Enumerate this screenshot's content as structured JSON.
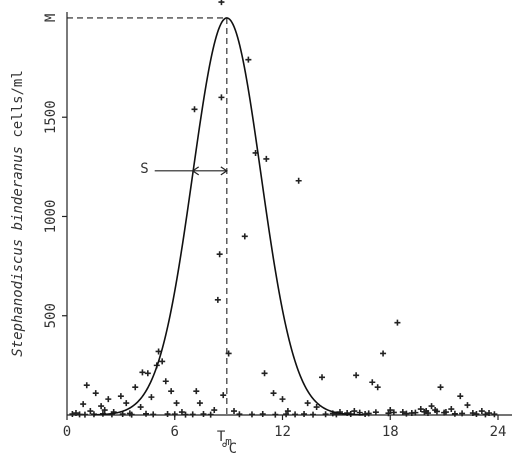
{
  "chart_data": {
    "type": "scatter",
    "xlabel": "°C",
    "ylabel_species": "Stephanodiscus binderanus",
    "ylabel_units": " cells/ml",
    "xlim": [
      0,
      24
    ],
    "ylim": [
      0,
      2030
    ],
    "xticks": [
      0,
      6,
      12,
      18,
      24
    ],
    "yticks": [
      500,
      1000,
      1500
    ],
    "annotations": {
      "max_label": "M",
      "spread_label": "S",
      "tm_label": "T",
      "tm_subscript": "m"
    },
    "fitted_curve": {
      "peak_x": 8.9,
      "peak_y": 2000,
      "sd": 1.9,
      "spread_from_x": 7.0,
      "spread_y": 1230
    },
    "points": [
      [
        0.5,
        10
      ],
      [
        0.9,
        55
      ],
      [
        1.1,
        150
      ],
      [
        1.3,
        20
      ],
      [
        1.6,
        110
      ],
      [
        1.9,
        45
      ],
      [
        2.1,
        25
      ],
      [
        2.3,
        80
      ],
      [
        2.6,
        15
      ],
      [
        3.0,
        95
      ],
      [
        3.3,
        60
      ],
      [
        3.5,
        8
      ],
      [
        3.8,
        140
      ],
      [
        4.1,
        40
      ],
      [
        4.2,
        215
      ],
      [
        4.5,
        210
      ],
      [
        4.7,
        90
      ],
      [
        5.0,
        250
      ],
      [
        5.1,
        320
      ],
      [
        5.3,
        270
      ],
      [
        5.5,
        170
      ],
      [
        5.8,
        120
      ],
      [
        6.1,
        60
      ],
      [
        6.4,
        15
      ],
      [
        7.1,
        1540
      ],
      [
        7.2,
        120
      ],
      [
        7.4,
        60
      ],
      [
        8.4,
        580
      ],
      [
        8.5,
        810
      ],
      [
        8.6,
        1600
      ],
      [
        8.7,
        100
      ],
      [
        8.6,
        2080
      ],
      [
        8.2,
        25
      ],
      [
        9.0,
        310
      ],
      [
        9.3,
        20
      ],
      [
        9.9,
        900
      ],
      [
        10.1,
        1790
      ],
      [
        10.5,
        1320
      ],
      [
        11.0,
        210
      ],
      [
        11.1,
        1290
      ],
      [
        11.5,
        110
      ],
      [
        12.0,
        80
      ],
      [
        12.3,
        20
      ],
      [
        12.9,
        1180
      ],
      [
        13.4,
        60
      ],
      [
        13.9,
        40
      ],
      [
        14.2,
        190
      ],
      [
        14.8,
        8
      ],
      [
        15.2,
        15
      ],
      [
        15.6,
        10
      ],
      [
        16.0,
        20
      ],
      [
        16.1,
        200
      ],
      [
        16.6,
        5
      ],
      [
        17.0,
        165
      ],
      [
        17.3,
        140
      ],
      [
        17.6,
        310
      ],
      [
        18.0,
        25
      ],
      [
        18.4,
        465
      ],
      [
        18.7,
        15
      ],
      [
        19.2,
        10
      ],
      [
        19.7,
        30
      ],
      [
        20.0,
        20
      ],
      [
        20.3,
        45
      ],
      [
        20.5,
        25
      ],
      [
        20.8,
        140
      ],
      [
        21.1,
        15
      ],
      [
        21.4,
        30
      ],
      [
        21.9,
        95
      ],
      [
        22.3,
        50
      ],
      [
        22.6,
        10
      ],
      [
        23.1,
        20
      ],
      [
        23.5,
        10
      ],
      [
        0.3,
        5
      ],
      [
        0.7,
        3
      ],
      [
        1.0,
        2
      ],
      [
        1.5,
        4
      ],
      [
        2.0,
        6
      ],
      [
        2.5,
        3
      ],
      [
        3.1,
        5
      ],
      [
        3.6,
        2
      ],
      [
        4.4,
        6
      ],
      [
        4.8,
        3
      ],
      [
        5.6,
        5
      ],
      [
        6.0,
        4
      ],
      [
        6.6,
        2
      ],
      [
        7.0,
        3
      ],
      [
        7.6,
        5
      ],
      [
        8.0,
        2
      ],
      [
        9.6,
        4
      ],
      [
        10.3,
        3
      ],
      [
        10.9,
        5
      ],
      [
        11.6,
        2
      ],
      [
        12.2,
        4
      ],
      [
        12.7,
        3
      ],
      [
        13.2,
        5
      ],
      [
        13.7,
        2
      ],
      [
        14.4,
        4
      ],
      [
        15.0,
        3
      ],
      [
        15.8,
        5
      ],
      [
        16.3,
        12
      ],
      [
        16.8,
        8
      ],
      [
        17.2,
        14
      ],
      [
        17.9,
        9
      ],
      [
        18.2,
        13
      ],
      [
        18.9,
        7
      ],
      [
        19.4,
        12
      ],
      [
        19.9,
        16
      ],
      [
        20.1,
        10
      ],
      [
        20.6,
        18
      ],
      [
        21.0,
        12
      ],
      [
        21.6,
        6
      ],
      [
        22.0,
        8
      ],
      [
        22.8,
        5
      ],
      [
        23.3,
        3
      ],
      [
        23.8,
        4
      ]
    ]
  }
}
